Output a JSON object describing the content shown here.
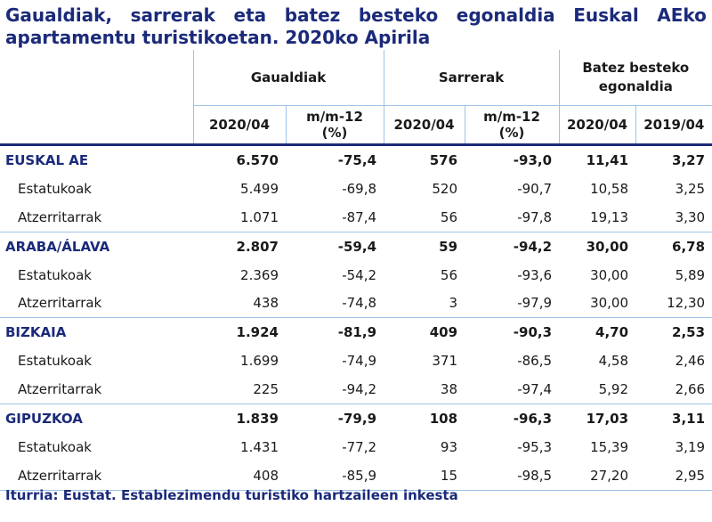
{
  "title": {
    "line1_words": [
      "Gaualdiak,",
      "sarrerak",
      "eta",
      "batez",
      "besteko",
      "egonaldia",
      "Euskal",
      "AEko"
    ],
    "line2": "apartamentu turistikoetan. 2020ko Apirila"
  },
  "table": {
    "groups": [
      "Gaualdiak",
      "Sarrerak",
      "Batez besteko egonaldia"
    ],
    "subheaders": [
      "2020/04",
      "m/m-12 (%)",
      "2020/04",
      "m/m-12 (%)",
      "2020/04",
      "2019/04"
    ],
    "rows": [
      {
        "name": "EUSKAL AE",
        "type": "region",
        "values": [
          "6.570",
          "-75,4",
          "576",
          "-93,0",
          "11,41",
          "3,27"
        ]
      },
      {
        "name": "Estatukoak",
        "type": "sub",
        "values": [
          "5.499",
          "-69,8",
          "520",
          "-90,7",
          "10,58",
          "3,25"
        ]
      },
      {
        "name": "Atzerritarrak",
        "type": "sub",
        "values": [
          "1.071",
          "-87,4",
          "56",
          "-97,8",
          "19,13",
          "3,30"
        ]
      },
      {
        "name": "ARABA/ÁLAVA",
        "type": "region",
        "values": [
          "2.807",
          "-59,4",
          "59",
          "-94,2",
          "30,00",
          "6,78"
        ]
      },
      {
        "name": "Estatukoak",
        "type": "sub",
        "values": [
          "2.369",
          "-54,2",
          "56",
          "-93,6",
          "30,00",
          "5,89"
        ]
      },
      {
        "name": "Atzerritarrak",
        "type": "sub",
        "values": [
          "438",
          "-74,8",
          "3",
          "-97,9",
          "30,00",
          "12,30"
        ]
      },
      {
        "name": "BIZKAIA",
        "type": "region",
        "values": [
          "1.924",
          "-81,9",
          "409",
          "-90,3",
          "4,70",
          "2,53"
        ]
      },
      {
        "name": "Estatukoak",
        "type": "sub",
        "values": [
          "1.699",
          "-74,9",
          "371",
          "-86,5",
          "4,58",
          "2,46"
        ]
      },
      {
        "name": "Atzerritarrak",
        "type": "sub",
        "values": [
          "225",
          "-94,2",
          "38",
          "-97,4",
          "5,92",
          "2,66"
        ]
      },
      {
        "name": "GIPUZKOA",
        "type": "region",
        "values": [
          "1.839",
          "-79,9",
          "108",
          "-96,3",
          "17,03",
          "3,11"
        ]
      },
      {
        "name": "Estatukoak",
        "type": "sub",
        "values": [
          "1.431",
          "-77,2",
          "93",
          "-95,3",
          "15,39",
          "3,19"
        ]
      },
      {
        "name": "Atzerritarrak",
        "type": "sub",
        "values": [
          "408",
          "-85,9",
          "15",
          "-98,5",
          "27,20",
          "2,95"
        ]
      }
    ]
  },
  "source": "Iturria: Eustat. Establezimendu turistiko hartzaileen inkesta"
}
